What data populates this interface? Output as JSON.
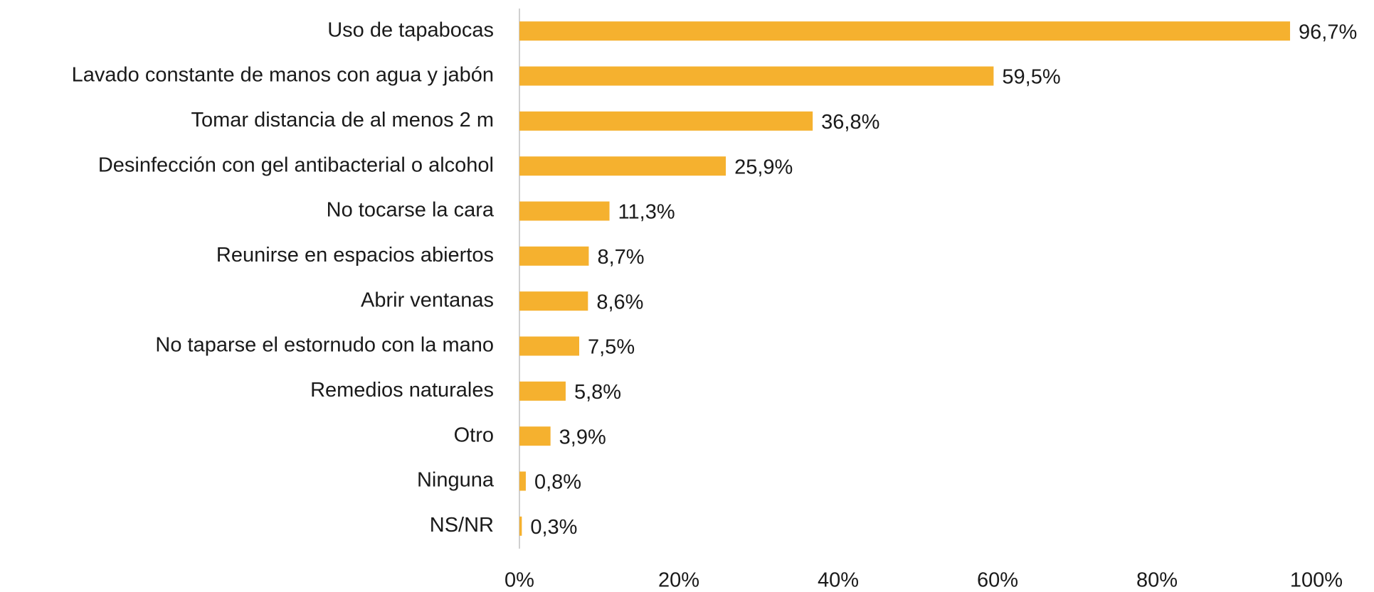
{
  "chart_data": {
    "type": "bar",
    "orientation": "horizontal",
    "categories": [
      "Uso de tapabocas",
      "Lavado constante de manos con agua y jabón",
      "Tomar distancia de al menos 2 m",
      "Desinfección con gel antibacterial o alcohol",
      "No tocarse la cara",
      "Reunirse en espacios abiertos",
      "Abrir ventanas",
      "No taparse el estornudo con la mano",
      "Remedios naturales",
      "Otro",
      "Ninguna",
      "NS/NR"
    ],
    "values": [
      96.7,
      59.5,
      36.8,
      25.9,
      11.3,
      8.7,
      8.6,
      7.5,
      5.8,
      3.9,
      0.8,
      0.3
    ],
    "value_labels": [
      "96,7%",
      "59,5%",
      "36,8%",
      "25,9%",
      "11,3%",
      "8,7%",
      "8,6%",
      "7,5%",
      "5,8%",
      "3,9%",
      "0,8%",
      "0,3%"
    ],
    "color": "#f5b12f",
    "xlim": [
      0,
      100
    ],
    "xticks": [
      {
        "value": 0,
        "label": "0%"
      },
      {
        "value": 20,
        "label": "20%"
      },
      {
        "value": 40,
        "label": "40%"
      },
      {
        "value": 60,
        "label": "60%"
      },
      {
        "value": 80,
        "label": "80%"
      },
      {
        "value": 100,
        "label": "100%"
      }
    ],
    "grid": false
  }
}
